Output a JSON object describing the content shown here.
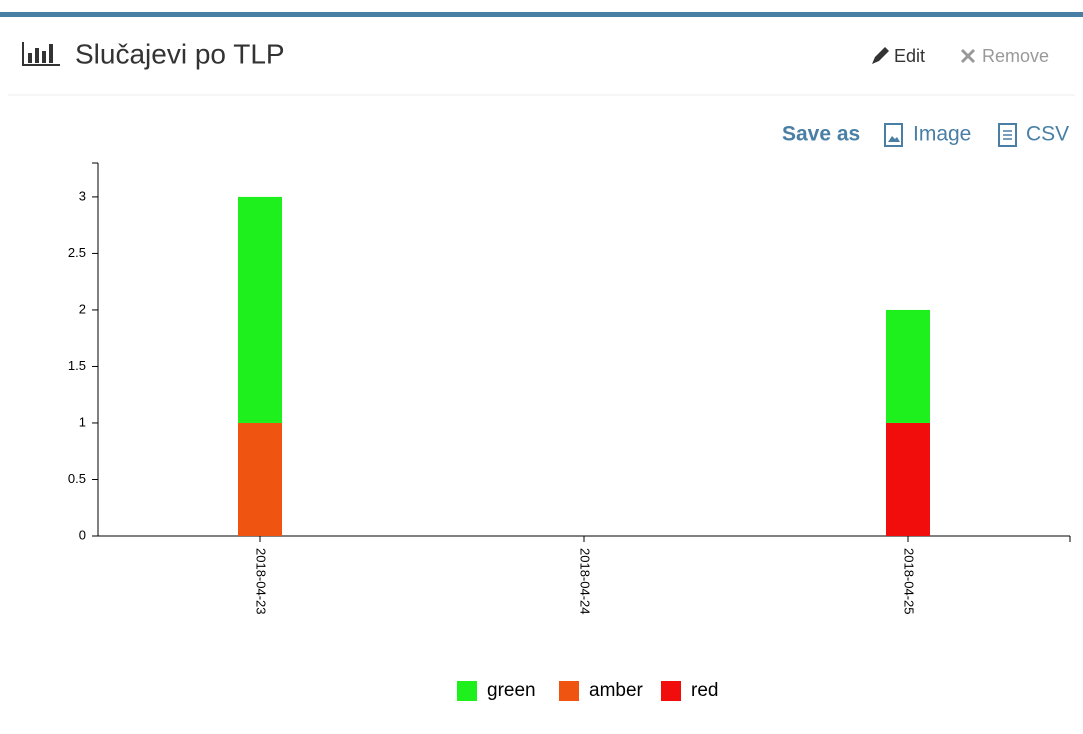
{
  "header": {
    "title": "Slučajevi po TLP",
    "edit": "Edit",
    "remove": "Remove"
  },
  "save": {
    "label": "Save as",
    "image": "Image",
    "csv": "CSV"
  },
  "chart_data": {
    "type": "bar",
    "stacked": true,
    "categories": [
      "2018-04-23",
      "2018-04-24",
      "2018-04-25"
    ],
    "series": [
      {
        "name": "green",
        "color": "#1ef01e",
        "values": [
          2,
          0,
          1
        ]
      },
      {
        "name": "amber",
        "color": "#ef5411",
        "values": [
          1,
          0,
          0
        ]
      },
      {
        "name": "red",
        "color": "#f20d0d",
        "values": [
          0,
          0,
          1
        ]
      }
    ],
    "ylim": [
      0,
      3.3
    ],
    "yticks": [
      0,
      0.5,
      1,
      1.5,
      2,
      2.5,
      3
    ],
    "legend": "bottom"
  }
}
